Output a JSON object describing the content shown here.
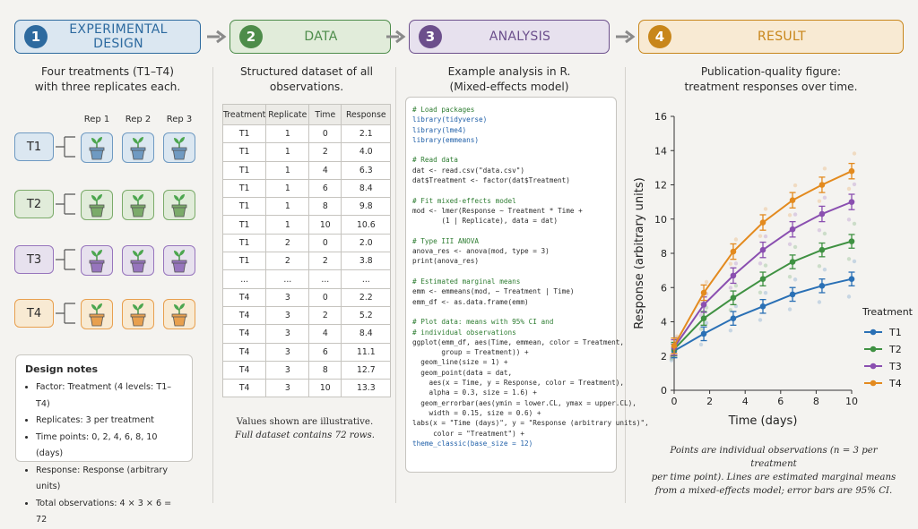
{
  "steps": [
    {
      "num": "1",
      "title": "EXPERIMENTAL DESIGN",
      "color": "#2d6a9f",
      "bg": "#dbe7f1"
    },
    {
      "num": "2",
      "title": "DATA",
      "color": "#4d8c4a",
      "bg": "#e1ecda"
    },
    {
      "num": "3",
      "title": "ANALYSIS",
      "color": "#6c4f8c",
      "bg": "#e7e1ee"
    },
    {
      "num": "4",
      "title": "RESULT",
      "color": "#c8861a",
      "bg": "#f8ead3"
    }
  ],
  "design": {
    "subtitle_1": "Four treatments (T1–T4)",
    "subtitle_2": "with three replicates each.",
    "rep_labels": [
      "Rep 1",
      "Rep 2",
      "Rep 3"
    ],
    "treatments": [
      {
        "label": "T1",
        "color": "#6f9ac2",
        "bg": "#dbe7f1"
      },
      {
        "label": "T2",
        "color": "#7bab6a",
        "bg": "#e1ecda"
      },
      {
        "label": "T3",
        "color": "#9775bd",
        "bg": "#e7e1ee"
      },
      {
        "label": "T4",
        "color": "#e8a04f",
        "bg": "#f8ead3"
      }
    ],
    "notes_title": "Design notes",
    "notes": [
      "Factor: Treatment (4 levels: T1–T4)",
      "Replicates: 3 per treatment",
      "Time points: 0, 2, 4, 6, 8, 10 (days)",
      "Response: Response (arbitrary units)",
      "Total observations: 4 × 3 × 6 = 72"
    ]
  },
  "data": {
    "subtitle_1": "Structured dataset of all",
    "subtitle_2": "observations.",
    "headers": [
      "Treatment",
      "Replicate",
      "Time",
      "Response"
    ],
    "rows": [
      [
        "T1",
        "1",
        "0",
        "2.1"
      ],
      [
        "T1",
        "1",
        "2",
        "4.0"
      ],
      [
        "T1",
        "1",
        "4",
        "6.3"
      ],
      [
        "T1",
        "1",
        "6",
        "8.4"
      ],
      [
        "T1",
        "1",
        "8",
        "9.8"
      ],
      [
        "T1",
        "1",
        "10",
        "10.6"
      ],
      [
        "T1",
        "2",
        "0",
        "2.0"
      ],
      [
        "T1",
        "2",
        "2",
        "3.8"
      ],
      [
        "...",
        "...",
        "...",
        "..."
      ],
      [
        "T4",
        "3",
        "0",
        "2.2"
      ],
      [
        "T4",
        "3",
        "2",
        "5.2"
      ],
      [
        "T4",
        "3",
        "4",
        "8.4"
      ],
      [
        "T4",
        "3",
        "6",
        "11.1"
      ],
      [
        "T4",
        "3",
        "8",
        "12.7"
      ],
      [
        "T4",
        "3",
        "10",
        "13.3"
      ]
    ],
    "note_1": "Values shown are illustrative.",
    "note_2": "Full dataset contains 72 rows."
  },
  "analysis": {
    "subtitle_1": "Example analysis in R.",
    "subtitle_2": "(Mixed-effects model)",
    "code": [
      {
        "t": "c",
        "v": "# Load packages"
      },
      {
        "t": "f",
        "v": "library(tidyverse)"
      },
      {
        "t": "f",
        "v": "library(lme4)"
      },
      {
        "t": "f",
        "v": "library(emmeans)"
      },
      {
        "t": "n",
        "v": ""
      },
      {
        "t": "c",
        "v": "# Read data"
      },
      {
        "t": "n",
        "v": "dat <- read.csv(\"data.csv\")"
      },
      {
        "t": "n",
        "v": "dat$Treatment <- factor(dat$Treatment)"
      },
      {
        "t": "n",
        "v": ""
      },
      {
        "t": "c",
        "v": "# Fit mixed-effects model"
      },
      {
        "t": "n",
        "v": "mod <- lmer(Response ~ Treatment * Time +"
      },
      {
        "t": "n",
        "v": "       (1 | Replicate), data = dat)"
      },
      {
        "t": "n",
        "v": ""
      },
      {
        "t": "c",
        "v": "# Type III ANOVA"
      },
      {
        "t": "n",
        "v": "anova_res <- anova(mod, type = 3)"
      },
      {
        "t": "n",
        "v": "print(anova_res)"
      },
      {
        "t": "n",
        "v": ""
      },
      {
        "t": "c",
        "v": "# Estimated marginal means"
      },
      {
        "t": "n",
        "v": "emm <- emmeans(mod, ~ Treatment | Time)"
      },
      {
        "t": "n",
        "v": "emm_df <- as.data.frame(emm)"
      },
      {
        "t": "n",
        "v": ""
      },
      {
        "t": "c",
        "v": "# Plot data: means with 95% CI and"
      },
      {
        "t": "c",
        "v": "# individual observations"
      },
      {
        "t": "n",
        "v": "ggplot(emm_df, aes(Time, emmean, color = Treatment,"
      },
      {
        "t": "n",
        "v": "       group = Treatment)) +"
      },
      {
        "t": "n",
        "v": "  geom_line(size = 1) +"
      },
      {
        "t": "n",
        "v": "  geom_point(data = dat,"
      },
      {
        "t": "n",
        "v": "    aes(x = Time, y = Response, color = Treatment),"
      },
      {
        "t": "n",
        "v": "    alpha = 0.3, size = 1.6) +"
      },
      {
        "t": "n",
        "v": "  geom_errorbar(aes(ymin = lower.CL, ymax = upper.CL),"
      },
      {
        "t": "n",
        "v": "    width = 0.15, size = 0.6) +"
      },
      {
        "t": "n",
        "v": "labs(x = \"Time (days)\", y = \"Response (arbitrary units)\","
      },
      {
        "t": "n",
        "v": "     color = \"Treatment\") +"
      },
      {
        "t": "f",
        "v": "theme_classic(base_size = 12)"
      }
    ]
  },
  "result": {
    "subtitle_1": "Publication-quality figure:",
    "subtitle_2": "treatment responses over time.",
    "caption_1": "Points are individual observations (n = 3 per treatment",
    "caption_2": "per time point). Lines are estimated marginal means",
    "caption_3": "from a mixed-effects model; error bars are 95% CI."
  },
  "chart_data": {
    "type": "line",
    "x": [
      0,
      1.67,
      3.33,
      5,
      6.67,
      8.33,
      10
    ],
    "xticks": [
      0,
      2,
      4,
      6,
      8,
      10
    ],
    "yticks": [
      0,
      2,
      4,
      6,
      8,
      10,
      12,
      14,
      16
    ],
    "xlim": [
      0,
      10
    ],
    "ylim": [
      0,
      16
    ],
    "xlabel": "Time (days)",
    "ylabel": "Response (arbitrary units)",
    "legend_title": "Treatment",
    "legend_position": "right",
    "grid": false,
    "series": [
      {
        "name": "T1",
        "color": "#2a70b5",
        "values": [
          2.3,
          3.3,
          4.2,
          4.9,
          5.6,
          6.1,
          6.5
        ],
        "ci": 0.4
      },
      {
        "name": "T2",
        "color": "#3f9142",
        "values": [
          2.4,
          4.2,
          5.4,
          6.5,
          7.5,
          8.2,
          8.7
        ],
        "ci": 0.4
      },
      {
        "name": "T3",
        "color": "#8a4fb0",
        "values": [
          2.5,
          5.0,
          6.7,
          8.2,
          9.4,
          10.3,
          11.0
        ],
        "ci": 0.45
      },
      {
        "name": "T4",
        "color": "#e38a1e",
        "values": [
          2.6,
          5.7,
          8.1,
          9.8,
          11.1,
          12.0,
          12.8
        ],
        "ci": 0.45
      }
    ]
  }
}
